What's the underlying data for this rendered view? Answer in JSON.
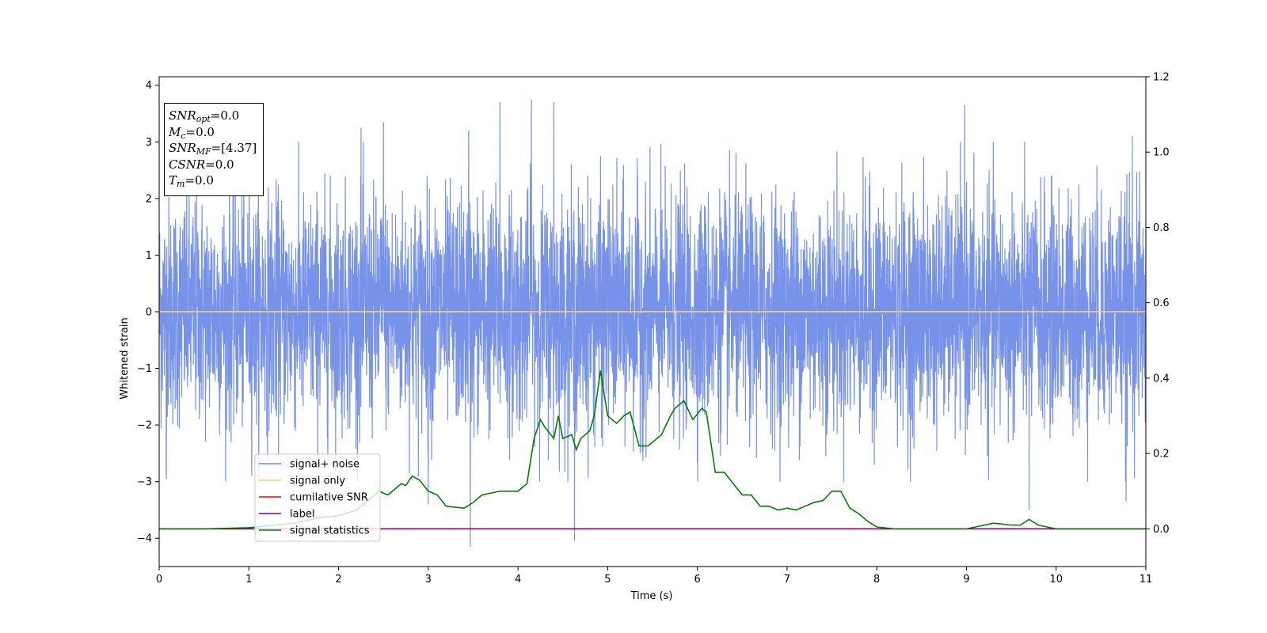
{
  "chart_data": {
    "type": "line",
    "xlabel": "Time (s)",
    "ylabel": "Whitened strain",
    "xlim": [
      0,
      11
    ],
    "ylim": [
      -4.5,
      4.15
    ],
    "y2lim": [
      -0.1,
      1.2
    ],
    "x_ticks": [
      0,
      1,
      2,
      3,
      4,
      5,
      6,
      7,
      8,
      9,
      10,
      11
    ],
    "y_ticks": [
      4,
      3,
      2,
      1,
      0,
      -1,
      -2,
      -3,
      -4
    ],
    "y_tick_labels": [
      "4",
      "3",
      "2",
      "1",
      "0",
      "−1",
      "−2",
      "−3",
      "−4"
    ],
    "y2_ticks": [
      0.0,
      0.2,
      0.4,
      0.6,
      0.8,
      1.0,
      1.2
    ],
    "y2_tick_labels": [
      "0.0",
      "0.2",
      "0.4",
      "0.6",
      "0.8",
      "1.0",
      "1.2"
    ],
    "legend_placement": "lower-left",
    "grid": false,
    "series": [
      {
        "name": "signal+ noise",
        "color": "#6f8ce8",
        "axis": "left",
        "description_type": "noise",
        "typical_range": [
          -2.3,
          2.3
        ],
        "peaks": [
          {
            "x": 3.8,
            "y": 3.7
          },
          {
            "x": 4.15,
            "y": 3.75
          },
          {
            "x": 4.4,
            "y": 3.7
          },
          {
            "x": 8.98,
            "y": 3.65
          },
          {
            "x": 2.25,
            "y": 3.25
          },
          {
            "x": 2.5,
            "y": 3.35
          },
          {
            "x": 10.85,
            "y": 3.1
          },
          {
            "x": 3.45,
            "y": 3.2
          },
          {
            "x": 3.47,
            "y": -4.15
          },
          {
            "x": 4.63,
            "y": -4.05
          },
          {
            "x": 0.08,
            "y": -2.95
          },
          {
            "x": 9.7,
            "y": -3.5
          },
          {
            "x": 10.78,
            "y": -3.35
          },
          {
            "x": 3.0,
            "y": -3.4
          }
        ]
      },
      {
        "name": "signal only",
        "color": "#ffc870",
        "axis": "left",
        "x": [
          0,
          11
        ],
        "y": [
          0,
          0
        ]
      },
      {
        "name": "cumilative SNR",
        "color": "#ff0000",
        "axis": "right",
        "x": [
          0,
          11
        ],
        "y": [
          0,
          0
        ]
      },
      {
        "name": "label",
        "color": "#800080",
        "axis": "right",
        "x": [
          0,
          11
        ],
        "y": [
          0,
          0
        ]
      },
      {
        "name": "signal statistics",
        "color": "#008000",
        "axis": "right",
        "x": [
          0,
          0.5,
          1.0,
          1.3,
          1.5,
          1.7,
          1.8,
          2.0,
          2.2,
          2.35,
          2.45,
          2.55,
          2.6,
          2.7,
          2.75,
          2.82,
          2.9,
          3.0,
          3.1,
          3.2,
          3.4,
          3.5,
          3.6,
          3.8,
          3.85,
          4.0,
          4.1,
          4.18,
          4.25,
          4.3,
          4.4,
          4.45,
          4.5,
          4.6,
          4.65,
          4.7,
          4.8,
          4.85,
          4.92,
          5.0,
          5.1,
          5.18,
          5.25,
          5.35,
          5.45,
          5.5,
          5.6,
          5.7,
          5.75,
          5.85,
          5.95,
          6.05,
          6.1,
          6.2,
          6.3,
          6.4,
          6.5,
          6.6,
          6.7,
          6.8,
          6.9,
          7.0,
          7.1,
          7.2,
          7.3,
          7.4,
          7.5,
          7.6,
          7.7,
          7.8,
          7.9,
          8.0,
          8.2,
          8.5,
          8.7,
          9.0,
          9.1,
          9.2,
          9.3,
          9.5,
          9.6,
          9.7,
          9.8,
          10.0,
          10.2,
          10.5,
          11.0
        ],
        "y": [
          0.0,
          0.0,
          0.003,
          0.01,
          0.015,
          0.025,
          0.03,
          0.035,
          0.05,
          0.08,
          0.1,
          0.09,
          0.1,
          0.12,
          0.115,
          0.14,
          0.13,
          0.1,
          0.09,
          0.06,
          0.055,
          0.07,
          0.09,
          0.1,
          0.1,
          0.1,
          0.12,
          0.24,
          0.29,
          0.27,
          0.24,
          0.3,
          0.24,
          0.25,
          0.21,
          0.24,
          0.26,
          0.3,
          0.42,
          0.3,
          0.28,
          0.3,
          0.31,
          0.22,
          0.22,
          0.23,
          0.25,
          0.3,
          0.32,
          0.34,
          0.29,
          0.32,
          0.31,
          0.15,
          0.15,
          0.12,
          0.09,
          0.09,
          0.06,
          0.06,
          0.05,
          0.055,
          0.05,
          0.06,
          0.07,
          0.075,
          0.1,
          0.1,
          0.055,
          0.04,
          0.02,
          0.005,
          0.0,
          0.0,
          0.0,
          0.0,
          0.005,
          0.01,
          0.015,
          0.01,
          0.01,
          0.025,
          0.01,
          0.0,
          0.0,
          0.0,
          0.0
        ]
      }
    ]
  },
  "info_box": {
    "snr_opt": {
      "sym": "SNR",
      "sub": "opt",
      "val": "=0.0"
    },
    "mc": {
      "sym": "M",
      "sub": "c",
      "val": "=0.0"
    },
    "snr_mf": {
      "sym": "SNR",
      "sub": "MF",
      "val": "=[4.37]"
    },
    "csnr": {
      "sym": "CSNR",
      "val": "=0.0"
    },
    "tm": {
      "sym": "T",
      "sub": "m",
      "val": "=0.0"
    }
  }
}
